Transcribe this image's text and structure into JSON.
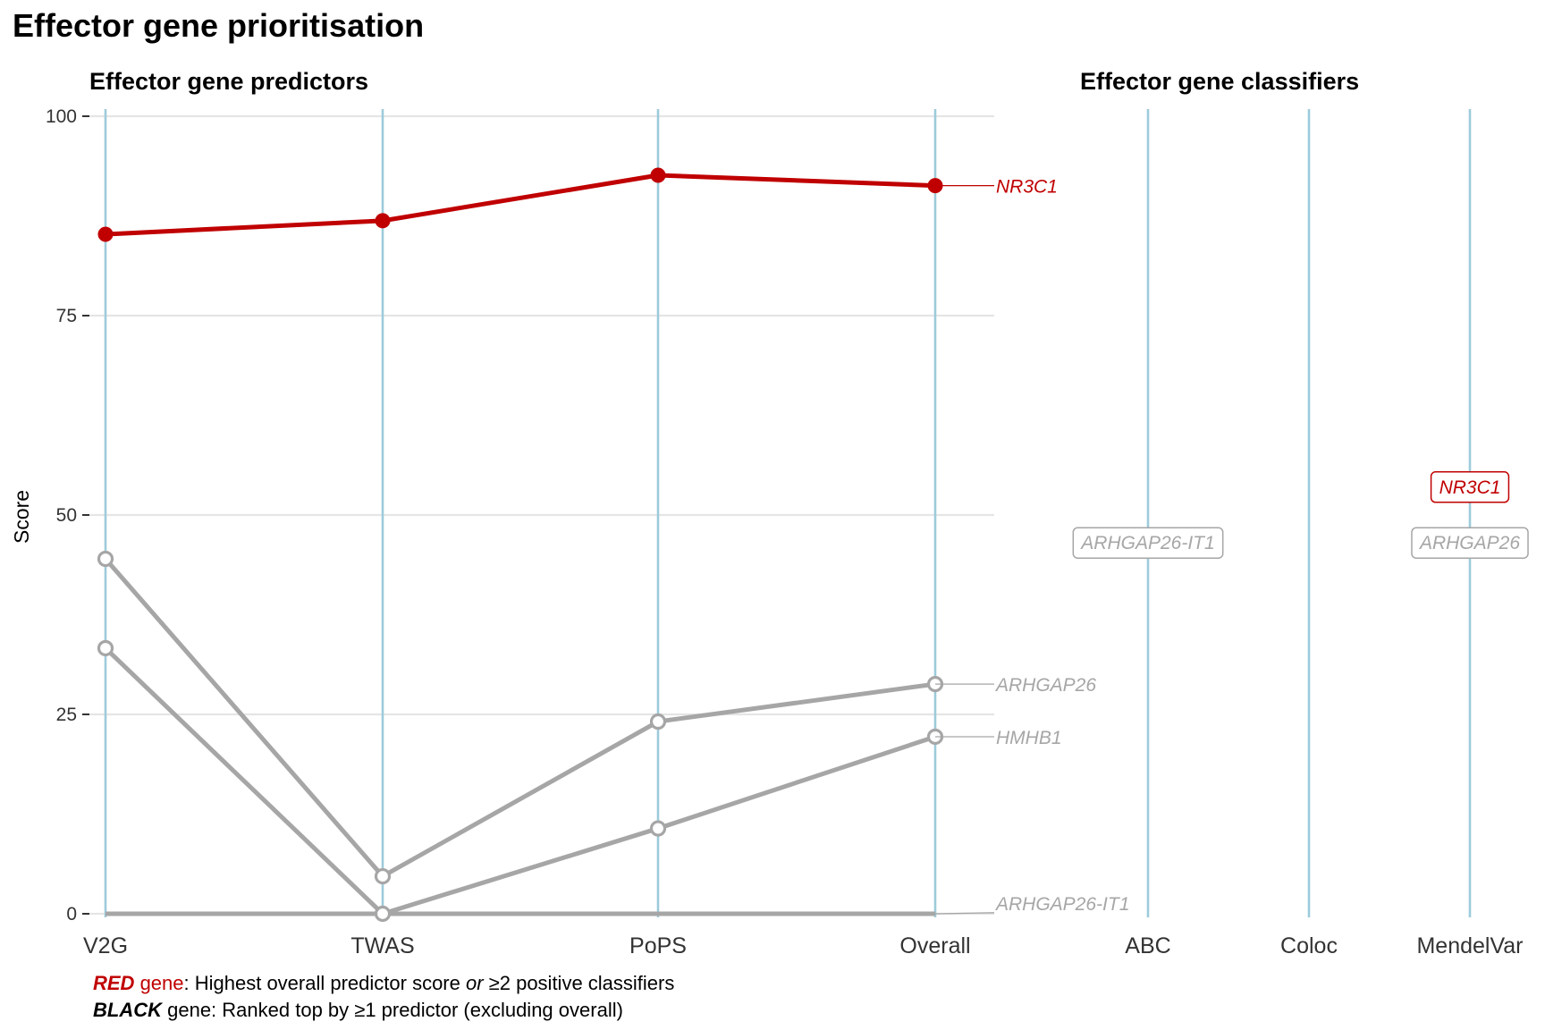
{
  "title": "Effector gene prioritisation",
  "colors": {
    "red": "#c00000",
    "grey": "#a6a6a6",
    "axis_line": "#9dcbdb",
    "grid": "#e5e5e5"
  },
  "caption": {
    "line1_bold": "RED",
    "line1_word": " gene",
    "line1_text_a": ": Highest overall predictor score ",
    "line1_or": "or",
    "line1_text_b": " ≥2 positive classifiers",
    "line2_bold": "BLACK",
    "line2_text": " gene: Ranked top by ≥1 predictor (excluding overall)"
  },
  "chart_data": [
    {
      "type": "line",
      "title": "Effector gene predictors",
      "ylabel": "Score",
      "ylim": [
        0,
        100
      ],
      "yticks": [
        "0",
        "25",
        "50",
        "75",
        "100"
      ],
      "categories": [
        "V2G",
        "TWAS",
        "PoPS",
        "Overall"
      ],
      "grid": "horizontal",
      "series": [
        {
          "name": "NR3C1",
          "color": "#c00000",
          "values": [
            85.2,
            86.9,
            92.6,
            91.3
          ]
        },
        {
          "name": "ARHGAP26",
          "color": "#a6a6a6",
          "values": [
            44.5,
            4.7,
            24.1,
            28.8
          ]
        },
        {
          "name": "HMHB1",
          "color": "#a6a6a6",
          "values": [
            33.3,
            0,
            10.7,
            22.2
          ]
        },
        {
          "name": "ARHGAP26-IT1",
          "color": "#a6a6a6",
          "values": [
            0,
            0,
            0,
            0
          ]
        }
      ]
    },
    {
      "type": "table",
      "title": "Effector gene classifiers",
      "categories": [
        "ABC",
        "Coloc",
        "MendelVar"
      ],
      "labels": [
        {
          "column": "ABC",
          "gene": "ARHGAP26-IT1",
          "color": "#a6a6a6",
          "y": 46.5
        },
        {
          "column": "MendelVar",
          "gene": "NR3C1",
          "color": "#c00000",
          "y": 53.5
        },
        {
          "column": "MendelVar",
          "gene": "ARHGAP26",
          "color": "#a6a6a6",
          "y": 46.5
        }
      ]
    }
  ]
}
